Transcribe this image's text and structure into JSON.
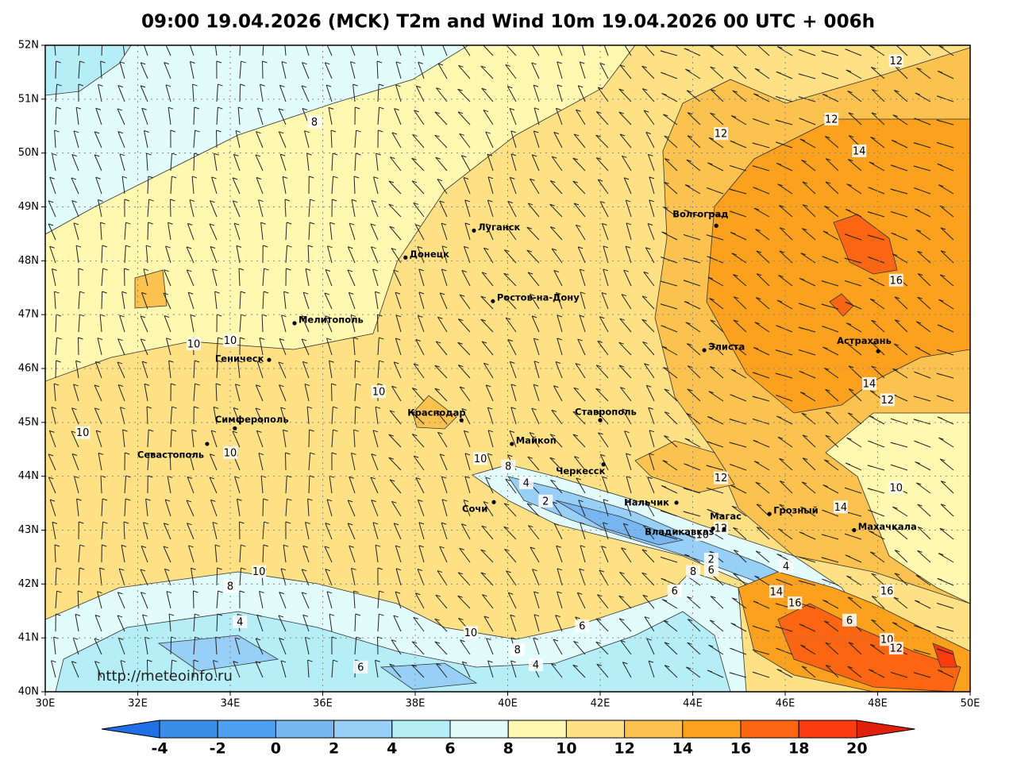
{
  "title": "09:00 19.04.2026 (MCK) T2m and Wind 10m 19.04.2026 00 UTC + 006h",
  "credit": "http://meteoinfo.ru",
  "map": {
    "xlim": [
      30,
      50
    ],
    "ylim": [
      40,
      52
    ],
    "grid": true,
    "xticks": [
      {
        "value": 30,
        "label": "30E"
      },
      {
        "value": 32,
        "label": "32E"
      },
      {
        "value": 34,
        "label": "34E"
      },
      {
        "value": 36,
        "label": "36E"
      },
      {
        "value": 38,
        "label": "38E"
      },
      {
        "value": 40,
        "label": "40E"
      },
      {
        "value": 42,
        "label": "42E"
      },
      {
        "value": 44,
        "label": "44E"
      },
      {
        "value": 46,
        "label": "46E"
      },
      {
        "value": 48,
        "label": "48E"
      },
      {
        "value": 50,
        "label": "50E"
      }
    ],
    "yticks": [
      {
        "value": 40,
        "label": "40N"
      },
      {
        "value": 41,
        "label": "41N"
      },
      {
        "value": 42,
        "label": "42N"
      },
      {
        "value": 43,
        "label": "43N"
      },
      {
        "value": 44,
        "label": "44N"
      },
      {
        "value": 45,
        "label": "45N"
      },
      {
        "value": 46,
        "label": "46N"
      },
      {
        "value": 47,
        "label": "47N"
      },
      {
        "value": 48,
        "label": "48N"
      },
      {
        "value": 49,
        "label": "49N"
      },
      {
        "value": 50,
        "label": "50N"
      },
      {
        "value": 51,
        "label": "51N"
      },
      {
        "value": 52,
        "label": "52N"
      }
    ]
  },
  "cities": [
    {
      "name": "Луганск",
      "lon": 39.27,
      "lat": 48.56
    },
    {
      "name": "Донецк",
      "lon": 37.79,
      "lat": 48.06
    },
    {
      "name": "Ростов-на-Дону",
      "lon": 39.68,
      "lat": 47.25
    },
    {
      "name": "Волгоград",
      "lon": 44.51,
      "lat": 48.65
    },
    {
      "name": "Мелитополь",
      "lon": 35.39,
      "lat": 46.84
    },
    {
      "name": "Геническ",
      "lon": 34.84,
      "lat": 46.16
    },
    {
      "name": "Элиста",
      "lon": 44.25,
      "lat": 46.34
    },
    {
      "name": "Астрахань",
      "lon": 48.01,
      "lat": 46.32
    },
    {
      "name": "Симферополь",
      "lon": 34.1,
      "lat": 44.89
    },
    {
      "name": "Севастополь",
      "lon": 33.5,
      "lat": 44.6
    },
    {
      "name": "Краснодар",
      "lon": 39.0,
      "lat": 45.04
    },
    {
      "name": "Ставрополь",
      "lon": 42.0,
      "lat": 45.04
    },
    {
      "name": "Майкоп",
      "lon": 40.09,
      "lat": 44.6
    },
    {
      "name": "Черкесск",
      "lon": 42.07,
      "lat": 44.22
    },
    {
      "name": "Сочи",
      "lon": 39.7,
      "lat": 43.52
    },
    {
      "name": "Нальчик",
      "lon": 43.65,
      "lat": 43.51
    },
    {
      "name": "Магас",
      "lon": 44.44,
      "lat": 43.03
    },
    {
      "name": "Владикавказ",
      "lon": 44.68,
      "lat": 43.02
    },
    {
      "name": "Грозный",
      "lon": 45.66,
      "lat": 43.3
    },
    {
      "name": "Махачкала",
      "lon": 47.49,
      "lat": 43.0
    }
  ],
  "contour_labels": [
    {
      "value": 12,
      "lon": 48.4,
      "lat": 51.71
    },
    {
      "value": 8,
      "lon": 35.82,
      "lat": 50.58
    },
    {
      "value": 12,
      "lon": 44.61,
      "lat": 50.36
    },
    {
      "value": 12,
      "lon": 47.0,
      "lat": 50.63
    },
    {
      "value": 14,
      "lon": 47.6,
      "lat": 50.04
    },
    {
      "value": 16,
      "lon": 48.4,
      "lat": 47.64
    },
    {
      "value": 10,
      "lon": 33.21,
      "lat": 46.46
    },
    {
      "value": 10,
      "lon": 34.0,
      "lat": 46.52
    },
    {
      "value": 10,
      "lon": 37.21,
      "lat": 45.57
    },
    {
      "value": 14,
      "lon": 47.82,
      "lat": 45.72
    },
    {
      "value": 12,
      "lon": 48.21,
      "lat": 45.42
    },
    {
      "value": 10,
      "lon": 30.81,
      "lat": 44.81
    },
    {
      "value": 10,
      "lon": 34.0,
      "lat": 44.44
    },
    {
      "value": 10,
      "lon": 39.41,
      "lat": 44.33
    },
    {
      "value": 8,
      "lon": 40.01,
      "lat": 44.19
    },
    {
      "value": 4,
      "lon": 40.4,
      "lat": 43.88
    },
    {
      "value": 2,
      "lon": 40.82,
      "lat": 43.54
    },
    {
      "value": 12,
      "lon": 44.61,
      "lat": 43.97
    },
    {
      "value": 10,
      "lon": 48.4,
      "lat": 43.79
    },
    {
      "value": 14,
      "lon": 47.2,
      "lat": 43.43
    },
    {
      "value": 12,
      "lon": 44.61,
      "lat": 43.04
    },
    {
      "value": 10,
      "lon": 44.21,
      "lat": 42.92
    },
    {
      "value": 2,
      "lon": 44.4,
      "lat": 42.46
    },
    {
      "value": 6,
      "lon": 44.4,
      "lat": 42.26
    },
    {
      "value": 8,
      "lon": 44.01,
      "lat": 42.23
    },
    {
      "value": 4,
      "lon": 46.02,
      "lat": 42.33
    },
    {
      "value": 10,
      "lon": 34.62,
      "lat": 42.23
    },
    {
      "value": 8,
      "lon": 34.0,
      "lat": 41.96
    },
    {
      "value": 6,
      "lon": 43.61,
      "lat": 41.87
    },
    {
      "value": 14,
      "lon": 45.81,
      "lat": 41.86
    },
    {
      "value": 16,
      "lon": 48.2,
      "lat": 41.87
    },
    {
      "value": 16,
      "lon": 46.21,
      "lat": 41.65
    },
    {
      "value": 4,
      "lon": 34.21,
      "lat": 41.3
    },
    {
      "value": 6,
      "lon": 41.61,
      "lat": 41.22
    },
    {
      "value": 6,
      "lon": 47.39,
      "lat": 41.33
    },
    {
      "value": 10,
      "lon": 39.2,
      "lat": 41.1
    },
    {
      "value": 10,
      "lon": 48.2,
      "lat": 40.97
    },
    {
      "value": 8,
      "lon": 40.21,
      "lat": 40.78
    },
    {
      "value": 12,
      "lon": 48.4,
      "lat": 40.81
    },
    {
      "value": 4,
      "lon": 40.61,
      "lat": 40.5
    },
    {
      "value": 6,
      "lon": 36.82,
      "lat": 40.46
    }
  ],
  "colorbar": {
    "levels": [
      -4,
      -2,
      0,
      2,
      4,
      6,
      8,
      10,
      12,
      14,
      16,
      18,
      20
    ],
    "colors": [
      "#1f6fe6",
      "#3a8ee8",
      "#4f9ff0",
      "#78b6f2",
      "#98cff6",
      "#b6eef8",
      "#e2fcfc",
      "#fff8b0",
      "#ffe185",
      "#fcc250",
      "#fca11e",
      "#fc6612",
      "#fc3c10",
      "#e0200a"
    ]
  }
}
